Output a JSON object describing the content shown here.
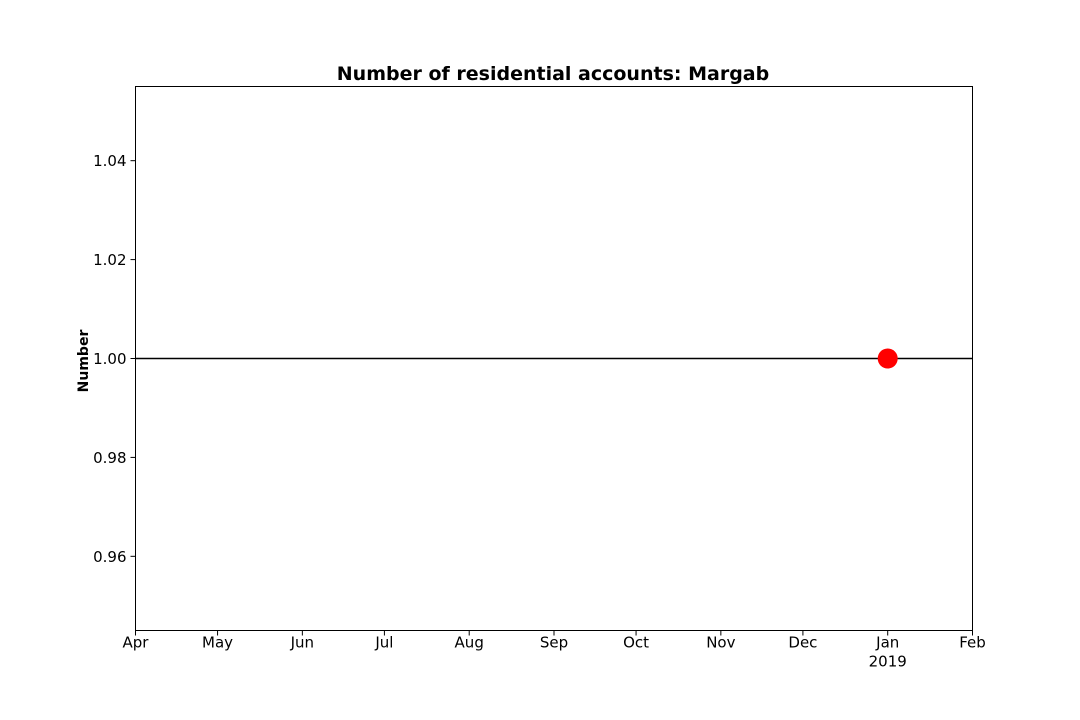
{
  "chart_data": {
    "type": "scatter",
    "title": "Number of residential accounts: Margab",
    "xlabel": "",
    "ylabel": "Number",
    "x_ticks": [
      "Apr",
      "May",
      "Jun",
      "Jul",
      "Aug",
      "Sep",
      "Oct",
      "Nov",
      "Dec",
      "Jan",
      "Feb"
    ],
    "x_year_label": "2019",
    "x_year_under_tick": "Jan",
    "xlim": [
      "2018-04-01",
      "2019-02-01"
    ],
    "ylim": [
      0.945,
      1.055
    ],
    "y_ticks": [
      "0.96",
      "0.98",
      "1.00",
      "1.02",
      "1.04"
    ],
    "reference_line": {
      "y": 1.0,
      "color": "#000000"
    },
    "series": [
      {
        "points": [
          {
            "x": "2019-01-01",
            "y": 1.0
          }
        ],
        "color": "#ff0000",
        "marker": "circle"
      }
    ],
    "grid": false,
    "legend": "none"
  }
}
